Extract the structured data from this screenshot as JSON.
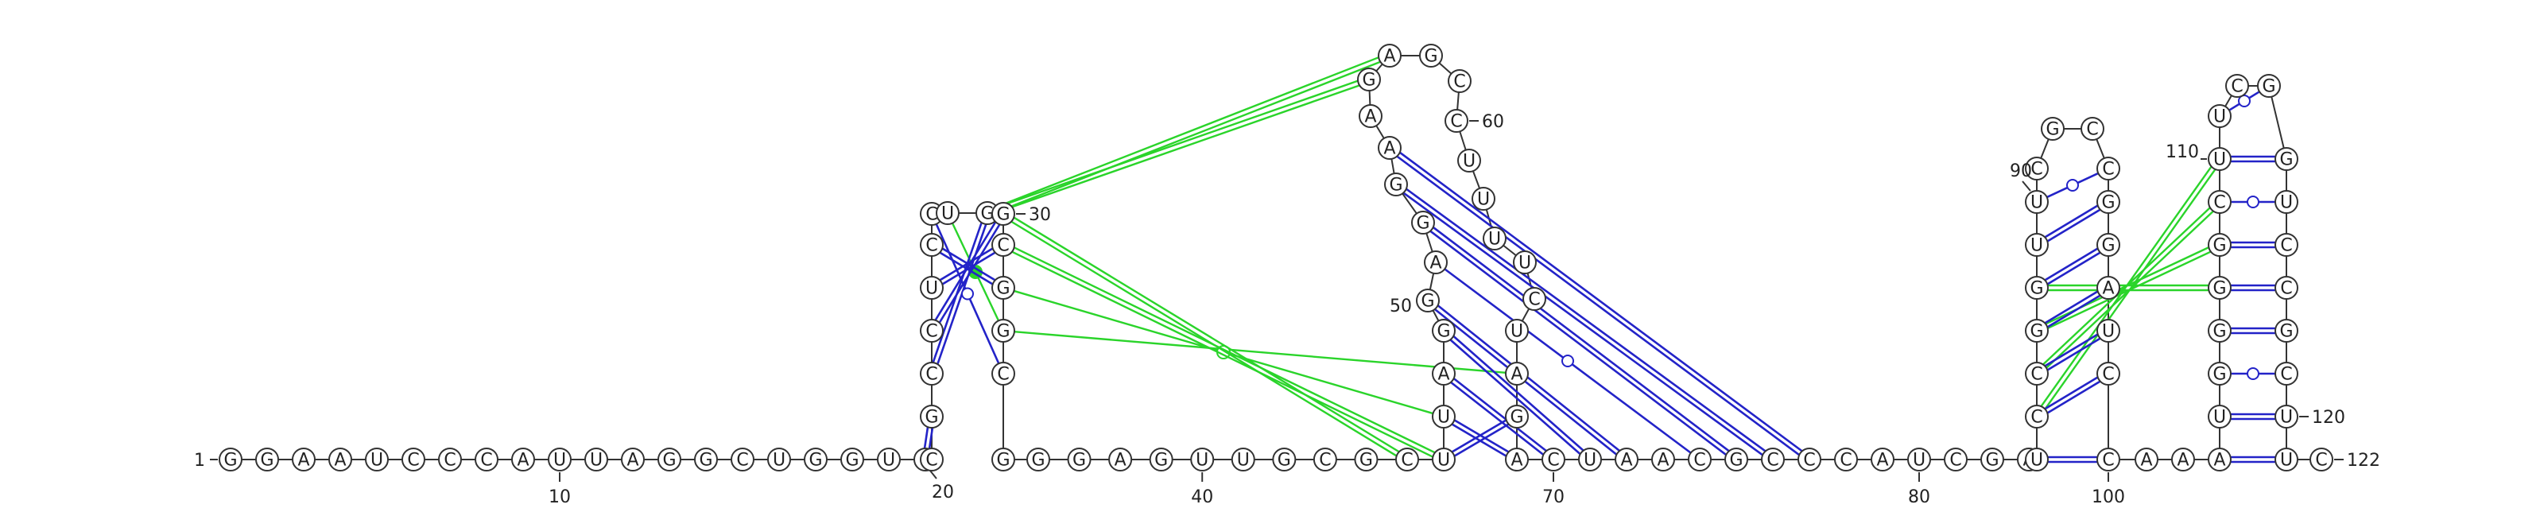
{
  "diagram": {
    "type": "rna-secondary-structure",
    "sequence": "GGAAUCCCAUUAGGCUGGUCUCCGCGGGAGUUGCGGCUGGAAGAGCCAUUGGCUCCGGCAGUCGCCAUGUCCGUUGCGACUACCGUGACGGCCAUGCGUGUCUCGCGAUGUUGCGACCCAGG",
    "nucleotides": [
      {
        "i": 1,
        "base": "G"
      },
      {
        "i": 2,
        "base": "G"
      },
      {
        "i": 3,
        "base": "A"
      },
      {
        "i": 4,
        "base": "A"
      },
      {
        "i": 5,
        "base": "U"
      },
      {
        "i": 6,
        "base": "C"
      },
      {
        "i": 7,
        "base": "C"
      },
      {
        "i": 8,
        "base": "C"
      },
      {
        "i": 9,
        "base": "A"
      },
      {
        "i": 10,
        "base": "U"
      },
      {
        "i": 11,
        "base": "U"
      },
      {
        "i": 12,
        "base": "A"
      },
      {
        "i": 13,
        "base": "G"
      },
      {
        "i": 14,
        "base": "G"
      },
      {
        "i": 15,
        "base": "C"
      },
      {
        "i": 16,
        "base": "U"
      },
      {
        "i": 17,
        "base": "G"
      },
      {
        "i": 18,
        "base": "G"
      },
      {
        "i": 19,
        "base": "U"
      },
      {
        "i": 20,
        "base": "C"
      },
      {
        "i": 21,
        "base": "C"
      },
      {
        "i": 22,
        "base": "G"
      },
      {
        "i": 23,
        "base": "C"
      },
      {
        "i": 24,
        "base": "C"
      },
      {
        "i": 25,
        "base": "U"
      },
      {
        "i": 26,
        "base": "C"
      },
      {
        "i": 27,
        "base": "C"
      },
      {
        "i": 28,
        "base": "U"
      },
      {
        "i": 29,
        "base": "G"
      },
      {
        "i": 30,
        "base": "G"
      },
      {
        "i": 31,
        "base": "C"
      },
      {
        "i": 32,
        "base": "G"
      },
      {
        "i": 33,
        "base": "G"
      },
      {
        "i": 34,
        "base": "C"
      },
      {
        "i": 35,
        "base": "G"
      },
      {
        "i": 36,
        "base": "G"
      },
      {
        "i": 37,
        "base": "G"
      },
      {
        "i": 38,
        "base": "A"
      },
      {
        "i": 39,
        "base": "G"
      },
      {
        "i": 40,
        "base": "U"
      },
      {
        "i": 41,
        "base": "U"
      },
      {
        "i": 42,
        "base": "G"
      },
      {
        "i": 43,
        "base": "C"
      },
      {
        "i": 44,
        "base": "G"
      },
      {
        "i": 45,
        "base": "C"
      },
      {
        "i": 46,
        "base": "U"
      },
      {
        "i": 47,
        "base": "U"
      },
      {
        "i": 48,
        "base": "A"
      },
      {
        "i": 49,
        "base": "G"
      },
      {
        "i": 50,
        "base": "G"
      },
      {
        "i": 51,
        "base": "A"
      },
      {
        "i": 52,
        "base": "G"
      },
      {
        "i": 53,
        "base": "G"
      },
      {
        "i": 54,
        "base": "A"
      },
      {
        "i": 55,
        "base": "A"
      },
      {
        "i": 56,
        "base": "G"
      },
      {
        "i": 57,
        "base": "A"
      },
      {
        "i": 58,
        "base": "G"
      },
      {
        "i": 59,
        "base": "C"
      },
      {
        "i": 60,
        "base": "C"
      },
      {
        "i": 61,
        "base": "U"
      },
      {
        "i": 62,
        "base": "U"
      },
      {
        "i": 63,
        "base": "U"
      },
      {
        "i": 64,
        "base": "U"
      },
      {
        "i": 65,
        "base": "C"
      },
      {
        "i": 66,
        "base": "U"
      },
      {
        "i": 67,
        "base": "A"
      },
      {
        "i": 68,
        "base": "G"
      },
      {
        "i": 69,
        "base": "A"
      },
      {
        "i": 70,
        "base": "C"
      },
      {
        "i": 71,
        "base": "U"
      },
      {
        "i": 72,
        "base": "A"
      },
      {
        "i": 73,
        "base": "A"
      },
      {
        "i": 74,
        "base": "C"
      },
      {
        "i": 75,
        "base": "G"
      },
      {
        "i": 76,
        "base": "C"
      },
      {
        "i": 77,
        "base": "C"
      },
      {
        "i": 78,
        "base": "C"
      },
      {
        "i": 79,
        "base": "A"
      },
      {
        "i": 80,
        "base": "U"
      },
      {
        "i": 81,
        "base": "C"
      },
      {
        "i": 82,
        "base": "G"
      },
      {
        "i": 83,
        "base": "A"
      },
      {
        "i": 84,
        "base": "U"
      },
      {
        "i": 85,
        "base": "C"
      },
      {
        "i": 86,
        "base": "C"
      },
      {
        "i": 87,
        "base": "G"
      },
      {
        "i": 88,
        "base": "G"
      },
      {
        "i": 89,
        "base": "U"
      },
      {
        "i": 90,
        "base": "U"
      },
      {
        "i": 91,
        "base": "C"
      },
      {
        "i": 92,
        "base": "G"
      },
      {
        "i": 93,
        "base": "C"
      },
      {
        "i": 94,
        "base": "C"
      },
      {
        "i": 95,
        "base": "G"
      },
      {
        "i": 96,
        "base": "G"
      },
      {
        "i": 97,
        "base": "A"
      },
      {
        "i": 98,
        "base": "U"
      },
      {
        "i": 99,
        "base": "C"
      },
      {
        "i": 100,
        "base": "C"
      },
      {
        "i": 101,
        "base": "A"
      },
      {
        "i": 102,
        "base": "A"
      },
      {
        "i": 103,
        "base": "A"
      },
      {
        "i": 104,
        "base": "U"
      },
      {
        "i": 105,
        "base": "G"
      },
      {
        "i": 106,
        "base": "G"
      },
      {
        "i": 107,
        "base": "G"
      },
      {
        "i": 108,
        "base": "G"
      },
      {
        "i": 109,
        "base": "C"
      },
      {
        "i": 110,
        "base": "U"
      },
      {
        "i": 111,
        "base": "U"
      },
      {
        "i": 112,
        "base": "C"
      },
      {
        "i": 113,
        "base": "G"
      },
      {
        "i": 114,
        "base": "G"
      },
      {
        "i": 115,
        "base": "U"
      },
      {
        "i": 116,
        "base": "C"
      },
      {
        "i": 117,
        "base": "C"
      },
      {
        "i": 118,
        "base": "G"
      },
      {
        "i": 119,
        "base": "C"
      },
      {
        "i": 120,
        "base": "U"
      },
      {
        "i": 121,
        "base": "U"
      },
      {
        "i": 122,
        "base": "C"
      }
    ],
    "position_labels": [
      {
        "i": 1,
        "text": "1"
      },
      {
        "i": 10,
        "text": "10"
      },
      {
        "i": 20,
        "text": "20"
      },
      {
        "i": 30,
        "text": "30"
      },
      {
        "i": 40,
        "text": "40"
      },
      {
        "i": 50,
        "text": "50"
      },
      {
        "i": 60,
        "text": "60"
      },
      {
        "i": 70,
        "text": "70"
      },
      {
        "i": 80,
        "text": "80"
      },
      {
        "i": 90,
        "text": "90"
      },
      {
        "i": 100,
        "text": "100"
      },
      {
        "i": 110,
        "text": "110"
      },
      {
        "i": 120,
        "text": "120"
      },
      {
        "i": 122,
        "text": "122"
      }
    ],
    "base_pairs": [
      {
        "a": 20,
        "b": 22,
        "kind": "WC"
      },
      {
        "a": 23,
        "b": 29,
        "kind": "WC"
      },
      {
        "a": 24,
        "b": 30,
        "kind": "WC"
      },
      {
        "a": 25,
        "b": 31,
        "kind": "WC"
      },
      {
        "a": 26,
        "b": 32,
        "kind": "WC"
      },
      {
        "a": 27,
        "b": 34,
        "kind": "GU"
      },
      {
        "a": 46,
        "b": 68,
        "kind": "WC"
      },
      {
        "a": 47,
        "b": 69,
        "kind": "WC"
      },
      {
        "a": 48,
        "b": 70,
        "kind": "WC"
      },
      {
        "a": 49,
        "b": 71,
        "kind": "WC"
      },
      {
        "a": 50,
        "b": 72,
        "kind": "WC"
      },
      {
        "a": 51,
        "b": 74,
        "kind": "GU"
      },
      {
        "a": 52,
        "b": 75,
        "kind": "WC"
      },
      {
        "a": 53,
        "b": 76,
        "kind": "WC"
      },
      {
        "a": 54,
        "b": 77,
        "kind": "WC"
      },
      {
        "a": 84,
        "b": 100,
        "kind": "WC"
      },
      {
        "a": 85,
        "b": 99,
        "kind": "WC"
      },
      {
        "a": 86,
        "b": 98,
        "kind": "WC"
      },
      {
        "a": 87,
        "b": 97,
        "kind": "WC"
      },
      {
        "a": 88,
        "b": 96,
        "kind": "WC"
      },
      {
        "a": 89,
        "b": 95,
        "kind": "WC"
      },
      {
        "a": 90,
        "b": 94,
        "kind": "GU"
      },
      {
        "a": 103,
        "b": 121,
        "kind": "WC"
      },
      {
        "a": 104,
        "b": 120,
        "kind": "WC"
      },
      {
        "a": 105,
        "b": 119,
        "kind": "GU"
      },
      {
        "a": 106,
        "b": 118,
        "kind": "WC"
      },
      {
        "a": 107,
        "b": 117,
        "kind": "WC"
      },
      {
        "a": 108,
        "b": 116,
        "kind": "WC"
      },
      {
        "a": 109,
        "b": 115,
        "kind": "GU"
      },
      {
        "a": 110,
        "b": 114,
        "kind": "WC"
      },
      {
        "a": 111,
        "b": 113,
        "kind": "GU"
      }
    ],
    "tertiary_pairs": [
      {
        "a": 28,
        "b": 33,
        "kind": "filled"
      },
      {
        "a": 29,
        "b": 56,
        "kind": "double"
      },
      {
        "a": 29,
        "b": 57,
        "kind": "double"
      },
      {
        "a": 33,
        "b": 67,
        "kind": "single"
      },
      {
        "a": 32,
        "b": 47,
        "kind": "circle"
      },
      {
        "a": 31,
        "b": 46,
        "kind": "double"
      },
      {
        "a": 30,
        "b": 45,
        "kind": "double"
      },
      {
        "a": 88,
        "b": 107,
        "kind": "double"
      },
      {
        "a": 87,
        "b": 108,
        "kind": "double"
      },
      {
        "a": 86,
        "b": 109,
        "kind": "double"
      },
      {
        "a": 85,
        "b": 110,
        "kind": "double"
      }
    ],
    "colors": {
      "backbone": "#333333",
      "canonical_pair": "#2323c8",
      "tertiary": "#2ad42a",
      "nucleotide_fill": "#ffffff",
      "nucleotide_stroke": "#333333"
    }
  }
}
